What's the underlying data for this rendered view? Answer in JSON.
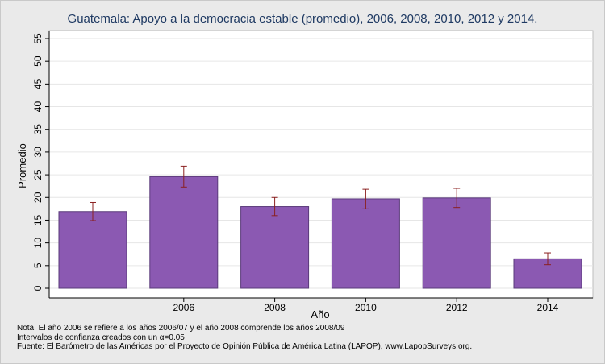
{
  "chart_data": {
    "type": "bar",
    "title": "Guatemala: Apoyo a la democracia estable (promedio), 2006, 2008, 2010, 2012 y 2014.",
    "xlabel": "Año",
    "ylabel": "Promedio",
    "categories": [
      "",
      "2006",
      "2008",
      "2010",
      "2012",
      "2014"
    ],
    "values": [
      16.9,
      24.6,
      18.0,
      19.7,
      19.9,
      6.5
    ],
    "ci_low": [
      14.9,
      22.3,
      16.0,
      17.5,
      17.8,
      5.2
    ],
    "ci_high": [
      18.9,
      26.9,
      20.0,
      21.8,
      22.0,
      7.8
    ],
    "ylim": [
      0,
      55
    ],
    "yticks": [
      0,
      5,
      10,
      15,
      20,
      25,
      30,
      35,
      40,
      45,
      50,
      55
    ],
    "grid": true,
    "colors": {
      "bar": "#8b59b2",
      "bar_edge": "#5a3a7a",
      "error_bar": "#8b2020",
      "plot_bg": "#ffffff",
      "grid": "#e6e6e6",
      "title": "#1f3a63"
    }
  },
  "notes": [
    "Nota: El año 2006 se refiere a los años 2006/07 y el año 2008 comprende los años 2008/09",
    "Intervalos de confianza creados con un α=0.05",
    "Fuente: El Barómetro de las Américas por el Proyecto de Opinión Pública de América Latina (LAPOP), www.LapopSurveys.org."
  ]
}
